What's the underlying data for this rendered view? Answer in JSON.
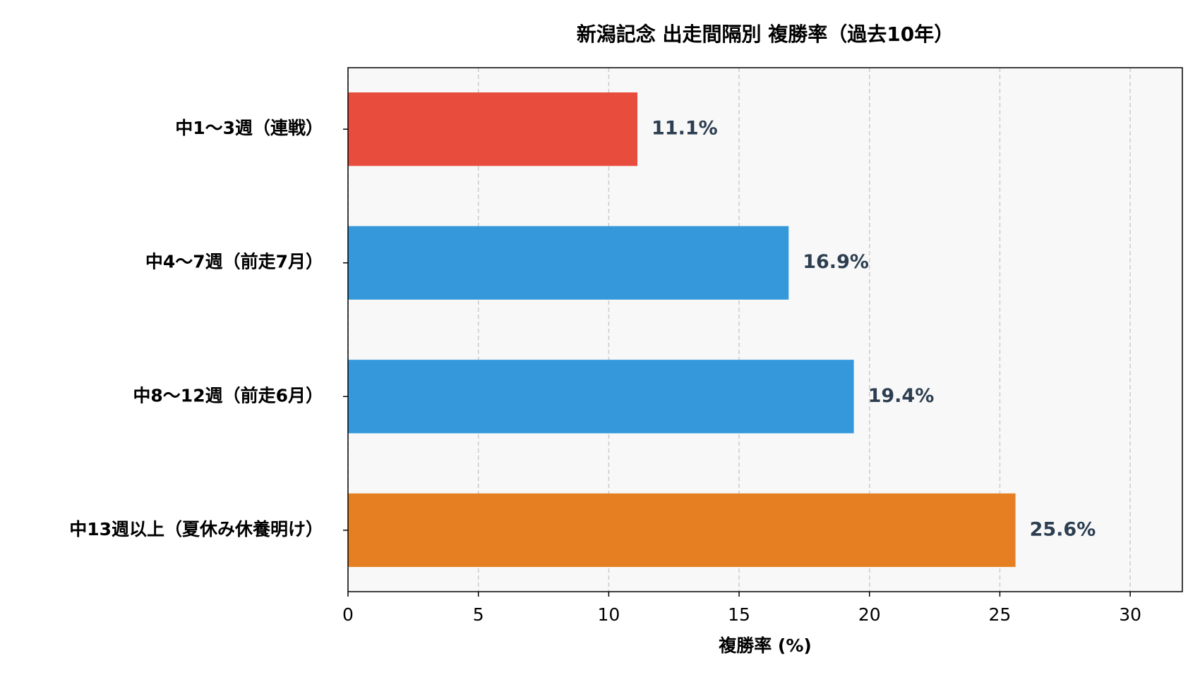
{
  "chart_data": {
    "type": "barh",
    "title": "新潟記念 出走間隔別 複勝率（過去10年）",
    "xlabel": "複勝率 (%)",
    "categories": [
      "中1〜3週（連戦）",
      "中4〜7週（前走7月）",
      "中8〜12週（前走6月）",
      "中13週以上（夏休み休養明け）"
    ],
    "values": [
      11.1,
      16.9,
      19.4,
      25.6
    ],
    "value_labels": [
      "11.1%",
      "16.9%",
      "19.4%",
      "25.6%"
    ],
    "colors": [
      "#e74c3c",
      "#3498db",
      "#3498db",
      "#e67e22"
    ],
    "xlim": [
      0,
      32
    ],
    "xticks": [
      0,
      5,
      10,
      15,
      20,
      25,
      30
    ],
    "grid": true
  }
}
